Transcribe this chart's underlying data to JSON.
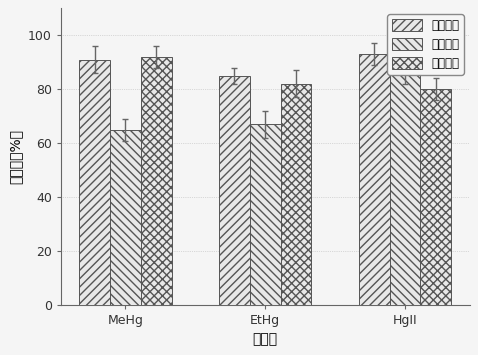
{
  "categories": [
    "MeHg",
    "EtHg",
    "HgII"
  ],
  "series": [
    {
      "name": "二氯甲烷",
      "values": [
        91,
        85,
        93
      ],
      "errors": [
        5,
        3,
        4
      ],
      "hatch": "////",
      "facecolor": "#e8e8e8",
      "edgecolor": "#555555"
    },
    {
      "name": "三氯甲烷",
      "values": [
        65,
        67,
        86
      ],
      "errors": [
        4,
        5,
        4
      ],
      "hatch": "\\\\\\\\",
      "facecolor": "#e8e8e8",
      "edgecolor": "#555555"
    },
    {
      "name": "四氯化碳",
      "values": [
        92,
        82,
        80
      ],
      "errors": [
        4,
        5,
        4
      ],
      "hatch": "xxxx",
      "facecolor": "#e8e8e8",
      "edgecolor": "#555555"
    }
  ],
  "ylabel": "回收率（%）",
  "xlabel": "汞形态",
  "ylim": [
    0,
    110
  ],
  "yticks": [
    0,
    20,
    40,
    60,
    80,
    100
  ],
  "bar_width": 0.22,
  "legend_fontsize": 8.5,
  "axis_fontsize": 10,
  "tick_fontsize": 9,
  "background_color": "#f5f5f5"
}
